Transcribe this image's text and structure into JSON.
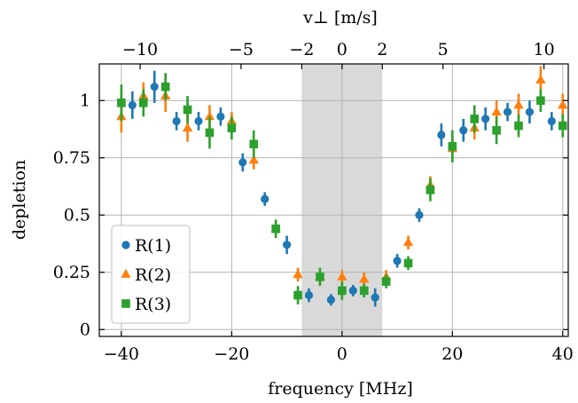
{
  "chart_data": {
    "type": "scatter",
    "xlabel": "frequency [MHz]",
    "ylabel": "depletion",
    "top_xlabel": "v⊥ [m/s]",
    "xlim": [
      -44,
      41
    ],
    "ylim": [
      -0.03,
      1.16
    ],
    "grid": true,
    "legend_position": "bottom-left",
    "x_ticks": [
      -40,
      -20,
      0,
      20,
      40
    ],
    "x_tick_labels": [
      "−40",
      "−20",
      "0",
      "20",
      "40"
    ],
    "y_ticks": [
      0,
      0.25,
      0.5,
      0.75,
      1
    ],
    "y_tick_labels": [
      "0",
      "0.25",
      "0.5",
      "0.75",
      "1"
    ],
    "top_ticks": [
      {
        "x": -36.6,
        "label": "−10"
      },
      {
        "x": -18.3,
        "label": "−5"
      },
      {
        "x": -7.3,
        "label": "−2"
      },
      {
        "x": 0,
        "label": "0"
      },
      {
        "x": 7.3,
        "label": "2"
      },
      {
        "x": 18.3,
        "label": "5"
      },
      {
        "x": 36.6,
        "label": "10"
      }
    ],
    "shaded_region": {
      "x": [
        -7.3,
        7.3
      ],
      "color": "#d9d9d9"
    },
    "series": [
      {
        "name": "R(1)",
        "marker": "circle",
        "color": "#1f77b4",
        "points": [
          {
            "x": -38,
            "y": 0.98,
            "err": 0.06
          },
          {
            "x": -34,
            "y": 1.06,
            "err": 0.07
          },
          {
            "x": -30,
            "y": 0.91,
            "err": 0.04
          },
          {
            "x": -26,
            "y": 0.91,
            "err": 0.04
          },
          {
            "x": -22,
            "y": 0.93,
            "err": 0.04
          },
          {
            "x": -18,
            "y": 0.73,
            "err": 0.04
          },
          {
            "x": -14,
            "y": 0.57,
            "err": 0.03
          },
          {
            "x": -10,
            "y": 0.37,
            "err": 0.04
          },
          {
            "x": -6,
            "y": 0.15,
            "err": 0.03
          },
          {
            "x": -2,
            "y": 0.13,
            "err": 0.025
          },
          {
            "x": 2,
            "y": 0.17,
            "err": 0.025
          },
          {
            "x": 6,
            "y": 0.14,
            "err": 0.04
          },
          {
            "x": 10,
            "y": 0.3,
            "err": 0.03
          },
          {
            "x": 14,
            "y": 0.5,
            "err": 0.03
          },
          {
            "x": 18,
            "y": 0.85,
            "err": 0.05
          },
          {
            "x": 22,
            "y": 0.87,
            "err": 0.05
          },
          {
            "x": 26,
            "y": 0.92,
            "err": 0.05
          },
          {
            "x": 30,
            "y": 0.95,
            "err": 0.04
          },
          {
            "x": 34,
            "y": 0.95,
            "err": 0.05
          },
          {
            "x": 38,
            "y": 0.91,
            "err": 0.04
          }
        ]
      },
      {
        "name": "R(2)",
        "marker": "triangle",
        "color": "#ff7f0e",
        "points": [
          {
            "x": -40,
            "y": 0.93,
            "err": 0.07
          },
          {
            "x": -36,
            "y": 1.02,
            "err": 0.06
          },
          {
            "x": -32,
            "y": 1.02,
            "err": 0.07
          },
          {
            "x": -28,
            "y": 0.88,
            "err": 0.06
          },
          {
            "x": -24,
            "y": 0.93,
            "err": 0.05
          },
          {
            "x": -20,
            "y": 0.91,
            "err": 0.04
          },
          {
            "x": -16,
            "y": 0.74,
            "err": 0.04
          },
          {
            "x": -12,
            "y": 0.44,
            "err": 0.04
          },
          {
            "x": -8,
            "y": 0.24,
            "err": 0.03
          },
          {
            "x": -4,
            "y": 0.23,
            "err": 0.03
          },
          {
            "x": 0,
            "y": 0.23,
            "err": 0.03
          },
          {
            "x": 4,
            "y": 0.22,
            "err": 0.03
          },
          {
            "x": 8,
            "y": 0.23,
            "err": 0.03
          },
          {
            "x": 12,
            "y": 0.38,
            "err": 0.03
          },
          {
            "x": 16,
            "y": 0.63,
            "err": 0.04
          },
          {
            "x": 20,
            "y": 0.79,
            "err": 0.05
          },
          {
            "x": 24,
            "y": 0.88,
            "err": 0.05
          },
          {
            "x": 28,
            "y": 0.95,
            "err": 0.05
          },
          {
            "x": 32,
            "y": 0.98,
            "err": 0.05
          },
          {
            "x": 36,
            "y": 1.09,
            "err": 0.06
          },
          {
            "x": 40,
            "y": 0.98,
            "err": 0.05
          }
        ]
      },
      {
        "name": "R(3)",
        "marker": "square",
        "color": "#2ca02c",
        "points": [
          {
            "x": -40,
            "y": 0.99,
            "err": 0.08
          },
          {
            "x": -36,
            "y": 0.99,
            "err": 0.06
          },
          {
            "x": -32,
            "y": 1.06,
            "err": 0.06
          },
          {
            "x": -28,
            "y": 0.96,
            "err": 0.06
          },
          {
            "x": -24,
            "y": 0.86,
            "err": 0.07
          },
          {
            "x": -20,
            "y": 0.88,
            "err": 0.05
          },
          {
            "x": -16,
            "y": 0.81,
            "err": 0.06
          },
          {
            "x": -12,
            "y": 0.44,
            "err": 0.04
          },
          {
            "x": -8,
            "y": 0.15,
            "err": 0.04
          },
          {
            "x": -4,
            "y": 0.23,
            "err": 0.04
          },
          {
            "x": 0,
            "y": 0.17,
            "err": 0.04
          },
          {
            "x": 4,
            "y": 0.17,
            "err": 0.03
          },
          {
            "x": 8,
            "y": 0.21,
            "err": 0.03
          },
          {
            "x": 12,
            "y": 0.29,
            "err": 0.03
          },
          {
            "x": 16,
            "y": 0.61,
            "err": 0.05
          },
          {
            "x": 20,
            "y": 0.8,
            "err": 0.07
          },
          {
            "x": 24,
            "y": 0.92,
            "err": 0.06
          },
          {
            "x": 28,
            "y": 0.87,
            "err": 0.06
          },
          {
            "x": 32,
            "y": 0.89,
            "err": 0.05
          },
          {
            "x": 36,
            "y": 1.0,
            "err": 0.05
          },
          {
            "x": 40,
            "y": 0.89,
            "err": 0.05
          }
        ]
      }
    ]
  }
}
